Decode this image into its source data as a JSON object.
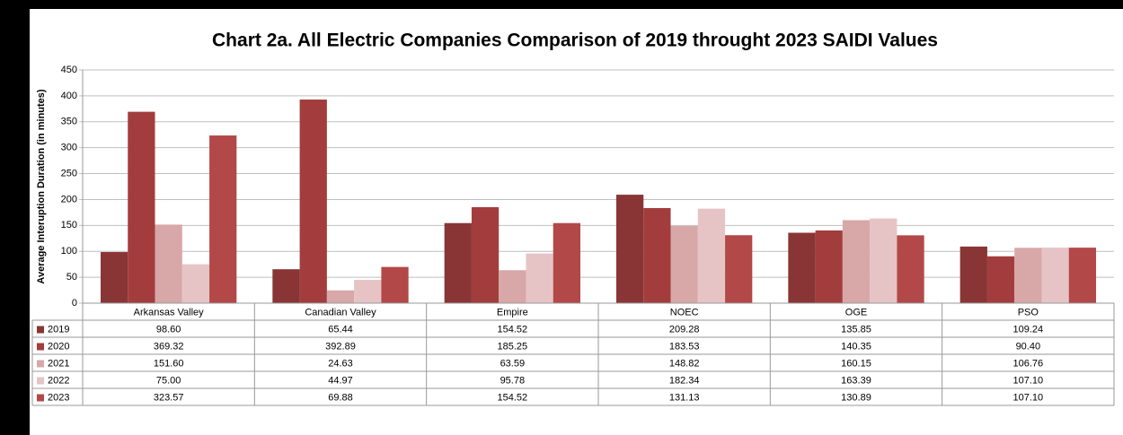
{
  "chart_data": {
    "type": "bar",
    "title": "Chart 2a. All Electric Companies Comparison of 2019 throught 2023 SAIDI Values",
    "y_label": "Average Interuption Duration (in minutes)",
    "categories": [
      "Arkansas Valley",
      "Canadian Valley",
      "Empire",
      "NOEC",
      "OGE",
      "PSO"
    ],
    "series": [
      {
        "name": "2019",
        "color": "#893535",
        "values": [
          98.6,
          65.44,
          154.52,
          209.28,
          135.85,
          109.24
        ],
        "value_labels": [
          "98.60",
          "65.44",
          "154.52",
          "209.28",
          "135.85",
          "109.24"
        ]
      },
      {
        "name": "2020",
        "color": "#a33d3d",
        "values": [
          369.32,
          392.89,
          185.25,
          183.53,
          140.35,
          90.4
        ],
        "value_labels": [
          "369.32",
          "392.89",
          "185.25",
          "183.53",
          "140.35",
          "90.40"
        ]
      },
      {
        "name": "2021",
        "color": "#d8a7a7",
        "values": [
          151.6,
          24.63,
          63.59,
          148.82,
          160.15,
          106.76
        ],
        "value_labels": [
          "151.60",
          "24.63",
          "63.59",
          "148.82",
          "160.15",
          "106.76"
        ]
      },
      {
        "name": "2022",
        "color": "#e6c4c5",
        "values": [
          75,
          44.97,
          95.78,
          182.34,
          163.39,
          107.1
        ],
        "value_labels": [
          "75.00",
          "44.97",
          "95.78",
          "182.34",
          "163.39",
          "107.10"
        ]
      },
      {
        "name": "2023",
        "color": "#b34848",
        "values": [
          323.57,
          69.88,
          154.52,
          131.13,
          130.89,
          107.1
        ],
        "value_labels": [
          "323.57",
          "69.88",
          "154.52",
          "131.13",
          "130.89",
          "107.10"
        ]
      }
    ],
    "ylim": [
      0,
      450
    ],
    "yticks": [
      0,
      50,
      100,
      150,
      200,
      250,
      300,
      350,
      400,
      450
    ],
    "grid": true
  }
}
